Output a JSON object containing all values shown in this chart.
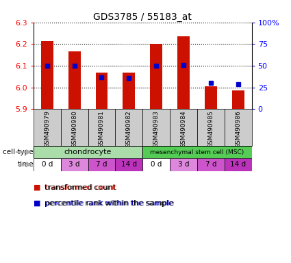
{
  "title": "GDS3785 / 55183_at",
  "samples": [
    "GSM490979",
    "GSM490980",
    "GSM490981",
    "GSM490982",
    "GSM490983",
    "GSM490984",
    "GSM490985",
    "GSM490986"
  ],
  "transformed_count": [
    6.215,
    6.165,
    6.07,
    6.07,
    6.2,
    6.235,
    6.005,
    5.985
  ],
  "percentile_rank": [
    50,
    50,
    37,
    36,
    50,
    51,
    30,
    29
  ],
  "ylim": [
    5.9,
    6.3
  ],
  "yticks": [
    5.9,
    6.0,
    6.1,
    6.2,
    6.3
  ],
  "right_ylim": [
    0,
    100
  ],
  "right_yticks": [
    0,
    25,
    50,
    75,
    100
  ],
  "right_yticklabels": [
    "0",
    "25",
    "50",
    "75",
    "100%"
  ],
  "time_labels": [
    "0 d",
    "3 d",
    "7 d",
    "14 d",
    "0 d",
    "3 d",
    "7 d",
    "14 d"
  ],
  "time_colors": [
    "#ffffff",
    "#dd88dd",
    "#cc55cc",
    "#bb33bb",
    "#ffffff",
    "#dd88dd",
    "#cc55cc",
    "#bb33bb"
  ],
  "bar_color": "#cc1100",
  "dot_color": "#0000cc",
  "background_color": "#ffffff",
  "sample_bg_color": "#cccccc",
  "chondrocyte_color": "#aaddaa",
  "msc_color": "#55cc55",
  "label_arrow_color": "#aaaaaa"
}
